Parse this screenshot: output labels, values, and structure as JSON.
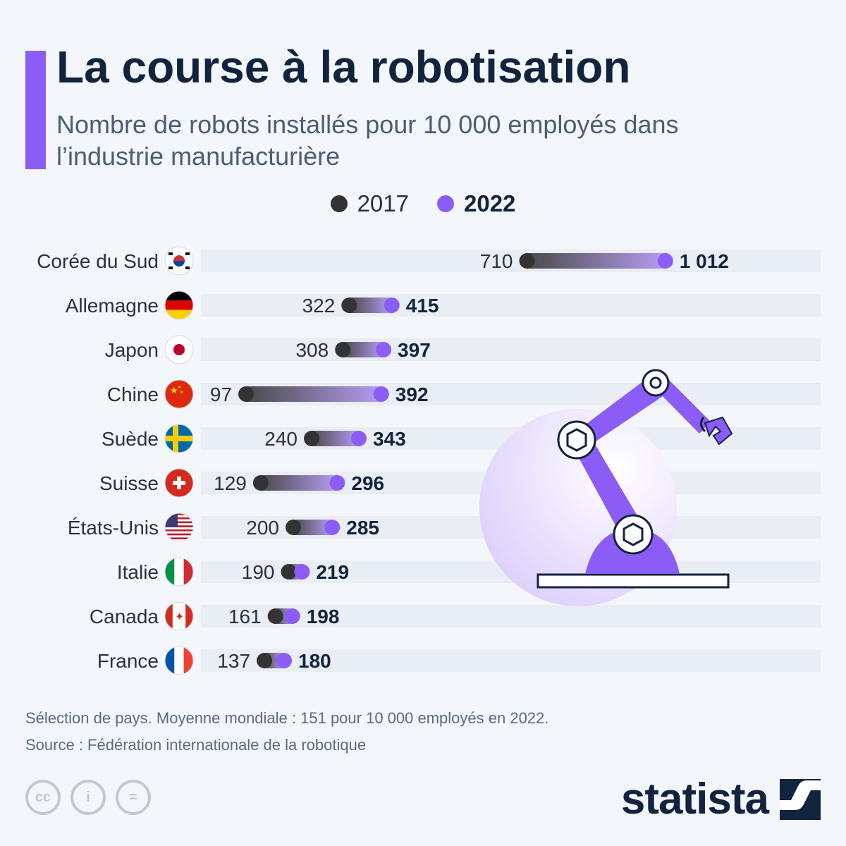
{
  "header": {
    "title": "La course à la robotisation",
    "subtitle": "Nombre de robots installés pour 10 000 employés dans l’industrie manufacturière"
  },
  "legend": {
    "label_2017": "2017",
    "label_2022": "2022"
  },
  "colors": {
    "accent": "#8c5cf6",
    "dark_dot": "#333333",
    "purple_dot": "#8c5cf6",
    "track": "#e9edf4",
    "title": "#12233d",
    "icon_circle": "#e4dbfb"
  },
  "chart_data": {
    "type": "dumbbell",
    "title": "La course à la robotisation",
    "series": [
      {
        "name": "2017",
        "values": [
          710,
          322,
          308,
          97,
          240,
          129,
          200,
          190,
          161,
          137
        ]
      },
      {
        "name": "2022",
        "values": [
          1012,
          415,
          397,
          392,
          343,
          296,
          285,
          219,
          198,
          180
        ]
      }
    ],
    "categories": [
      "Corée du Sud",
      "Allemagne",
      "Japon",
      "Chine",
      "Suède",
      "Suisse",
      "États-Unis",
      "Italie",
      "Canada",
      "France"
    ],
    "labels_2017": [
      "710",
      "322",
      "308",
      "97",
      "240",
      "129",
      "200",
      "190",
      "161",
      "137"
    ],
    "labels_2022": [
      "1 012",
      "415",
      "397",
      "392",
      "343",
      "296",
      "285",
      "219",
      "198",
      "180"
    ],
    "flags": [
      "kr",
      "de",
      "jp",
      "cn",
      "se",
      "ch",
      "us",
      "it",
      "ca",
      "fr"
    ],
    "xlim": [
      0,
      1400
    ],
    "legend_position": "top-center"
  },
  "illustration": {
    "icon": "robot-arm-icon"
  },
  "footer": {
    "note": "Sélection de pays. Moyenne mondiale : 151 pour 10 000 employés en 2022.",
    "source": "Source : Fédération internationale de la robotique",
    "brand": "statista",
    "license_icons": [
      "cc-icon",
      "by-icon",
      "nd-icon"
    ],
    "license_cc": "cc",
    "license_by": "i",
    "license_nd": "="
  }
}
